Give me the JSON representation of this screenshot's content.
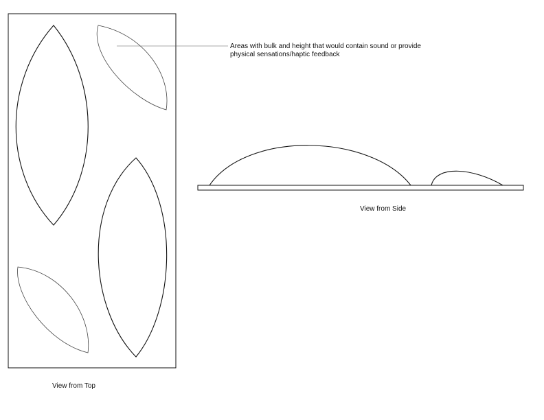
{
  "callout": {
    "line1": "Areas with bulk and height that would contain sound or provide",
    "line2": "physical sensations/haptic feedback"
  },
  "top_view": {
    "caption": "View from Top"
  },
  "side_view": {
    "caption": "View from Side"
  },
  "colors": {
    "stroke": "#111111",
    "thin_stroke": "#444444",
    "background": "#ffffff"
  }
}
